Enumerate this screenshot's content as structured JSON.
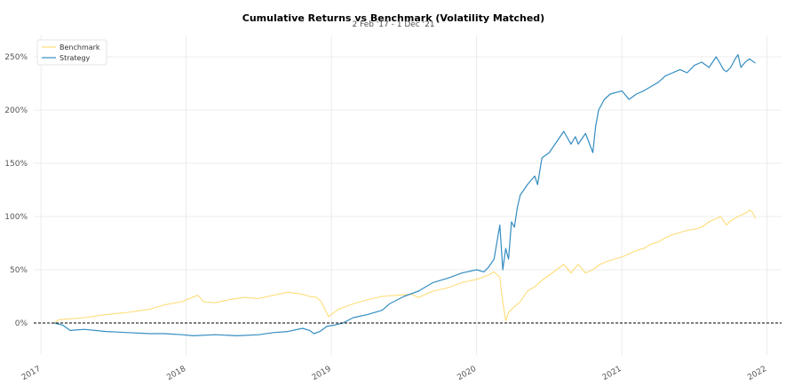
{
  "chart_data": {
    "type": "line",
    "title": "Cumulative Returns vs Benchmark (Volatility Matched)",
    "subtitle": "2 Feb '17 - 1 Dec '21",
    "xlabel": "",
    "ylabel": "",
    "xlim": [
      2016.95,
      2022.1
    ],
    "ylim": [
      -30,
      270
    ],
    "x_ticks": [
      2017,
      2018,
      2019,
      2020,
      2021,
      2022
    ],
    "x_tick_labels": [
      "2017",
      "2018",
      "2019",
      "2020",
      "2021",
      "2022"
    ],
    "y_ticks": [
      0,
      50,
      100,
      150,
      200,
      250
    ],
    "y_tick_labels": [
      "0%",
      "50%",
      "100%",
      "150%",
      "200%",
      "250%"
    ],
    "grid": true,
    "legend": "top-left",
    "baseline": 0,
    "series": [
      {
        "name": "Benchmark",
        "color": "#fedd78",
        "x": [
          2017.09,
          2017.12,
          2017.2,
          2017.3,
          2017.45,
          2017.6,
          2017.75,
          2017.85,
          2017.97,
          2018.04,
          2018.08,
          2018.12,
          2018.2,
          2018.3,
          2018.4,
          2018.5,
          2018.6,
          2018.7,
          2018.75,
          2018.8,
          2018.85,
          2018.9,
          2018.93,
          2018.98,
          2019.05,
          2019.15,
          2019.25,
          2019.35,
          2019.45,
          2019.55,
          2019.6,
          2019.7,
          2019.8,
          2019.9,
          2020.0,
          2020.08,
          2020.12,
          2020.16,
          2020.18,
          2020.2,
          2020.22,
          2020.25,
          2020.3,
          2020.35,
          2020.4,
          2020.45,
          2020.5,
          2020.55,
          2020.6,
          2020.65,
          2020.68,
          2020.7,
          2020.75,
          2020.8,
          2020.85,
          2020.9,
          2020.95,
          2021.0,
          2021.05,
          2021.1,
          2021.15,
          2021.2,
          2021.25,
          2021.3,
          2021.35,
          2021.4,
          2021.45,
          2021.5,
          2021.55,
          2021.6,
          2021.65,
          2021.68,
          2021.7,
          2021.72,
          2021.75,
          2021.8,
          2021.85,
          2021.88,
          2021.9,
          2021.92
        ],
        "y": [
          0,
          3,
          4,
          5,
          8,
          10,
          13,
          17,
          20,
          24,
          26,
          20,
          19,
          22,
          24,
          23,
          26,
          29,
          28,
          27,
          25,
          24,
          20,
          6,
          13,
          18,
          22,
          25,
          26,
          27,
          24,
          30,
          33,
          38,
          41,
          45,
          48,
          43,
          20,
          2,
          10,
          14,
          20,
          30,
          34,
          40,
          45,
          50,
          55,
          47,
          52,
          55,
          47,
          50,
          55,
          58,
          60,
          62,
          65,
          68,
          70,
          74,
          76,
          80,
          83,
          85,
          87,
          88,
          90,
          95,
          98,
          100,
          96,
          92,
          96,
          100,
          103,
          106,
          104,
          98
        ]
      },
      {
        "name": "Strategy",
        "color": "#348dc1",
        "x": [
          2017.09,
          2017.15,
          2017.2,
          2017.3,
          2017.45,
          2017.6,
          2017.75,
          2017.85,
          2017.97,
          2018.05,
          2018.2,
          2018.35,
          2018.5,
          2018.6,
          2018.7,
          2018.8,
          2018.85,
          2018.88,
          2018.92,
          2018.97,
          2019.02,
          2019.08,
          2019.15,
          2019.25,
          2019.35,
          2019.4,
          2019.5,
          2019.6,
          2019.7,
          2019.8,
          2019.9,
          2020.0,
          2020.05,
          2020.08,
          2020.12,
          2020.16,
          2020.18,
          2020.2,
          2020.22,
          2020.24,
          2020.26,
          2020.28,
          2020.3,
          2020.35,
          2020.4,
          2020.42,
          2020.45,
          2020.5,
          2020.55,
          2020.6,
          2020.65,
          2020.68,
          2020.7,
          2020.75,
          2020.8,
          2020.82,
          2020.84,
          2020.88,
          2020.92,
          2021.0,
          2021.05,
          2021.1,
          2021.15,
          2021.2,
          2021.25,
          2021.3,
          2021.35,
          2021.4,
          2021.45,
          2021.5,
          2021.55,
          2021.6,
          2021.65,
          2021.68,
          2021.7,
          2021.72,
          2021.75,
          2021.78,
          2021.8,
          2021.82,
          2021.85,
          2021.88,
          2021.9,
          2021.92
        ],
        "y": [
          0,
          -2,
          -7,
          -6,
          -8,
          -9,
          -10,
          -10,
          -11,
          -12,
          -11,
          -12,
          -11,
          -9,
          -8,
          -5,
          -7,
          -10,
          -8,
          -3,
          -2,
          0,
          5,
          8,
          12,
          18,
          25,
          30,
          38,
          42,
          47,
          50,
          48,
          52,
          60,
          92,
          50,
          70,
          60,
          95,
          90,
          108,
          120,
          130,
          138,
          130,
          155,
          160,
          170,
          180,
          168,
          175,
          168,
          178,
          160,
          185,
          200,
          210,
          215,
          218,
          210,
          215,
          218,
          222,
          226,
          232,
          235,
          238,
          235,
          242,
          245,
          240,
          250,
          243,
          238,
          236,
          240,
          248,
          252,
          240,
          245,
          248,
          246,
          244
        ]
      }
    ]
  }
}
